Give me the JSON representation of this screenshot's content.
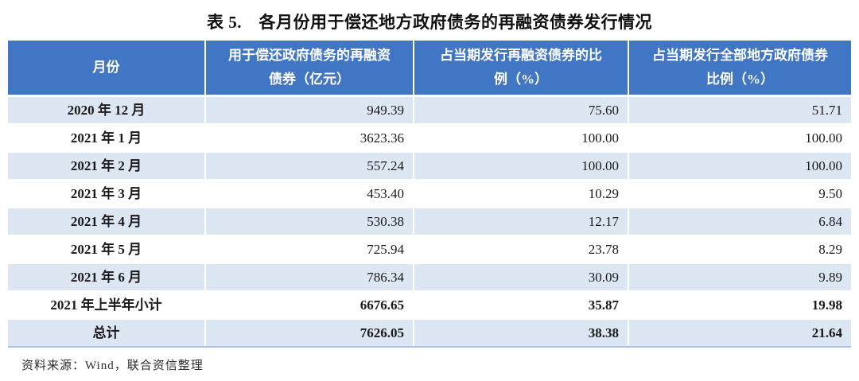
{
  "title": "表 5.　各月份用于偿还地方政府债务的再融资债券发行情况",
  "table": {
    "headers": [
      {
        "line1": "月份",
        "line2": ""
      },
      {
        "line1": "用于偿还政府债务的再融资",
        "line2": "债券（亿元）"
      },
      {
        "line1": "占当期发行再融资债券的比",
        "line2": "例（%）"
      },
      {
        "line1": "占当期发行全部地方政府债券",
        "line2": "比例（%）"
      }
    ],
    "rows": [
      {
        "month": "2020 年 12 月",
        "values": [
          "949.39",
          "75.60",
          "51.71"
        ],
        "emphasis": false
      },
      {
        "month": "2021 年 1 月",
        "values": [
          "3623.36",
          "100.00",
          "100.00"
        ],
        "emphasis": false
      },
      {
        "month": "2021 年 2 月",
        "values": [
          "557.24",
          "100.00",
          "100.00"
        ],
        "emphasis": false
      },
      {
        "month": "2021 年 3 月",
        "values": [
          "453.40",
          "10.29",
          "9.50"
        ],
        "emphasis": false
      },
      {
        "month": "2021 年 4 月",
        "values": [
          "530.38",
          "12.17",
          "6.84"
        ],
        "emphasis": false
      },
      {
        "month": "2021 年 5 月",
        "values": [
          "725.94",
          "23.78",
          "8.29"
        ],
        "emphasis": false
      },
      {
        "month": "2021 年 6 月",
        "values": [
          "786.34",
          "30.09",
          "9.89"
        ],
        "emphasis": false
      },
      {
        "month": "2021 年上半年小计",
        "values": [
          "6676.65",
          "35.87",
          "19.98"
        ],
        "emphasis": true
      },
      {
        "month": "总计",
        "values": [
          "7626.05",
          "38.38",
          "21.64"
        ],
        "emphasis": true
      }
    ]
  },
  "colors": {
    "header_bg": "#4176c5",
    "header_text": "#ffffff",
    "stripe_bg": "#dde6f3",
    "body_text": "#1a1a1a",
    "table_bottom_border": "#abc1e1"
  },
  "source": "资料来源：Wind，联合资信整理"
}
